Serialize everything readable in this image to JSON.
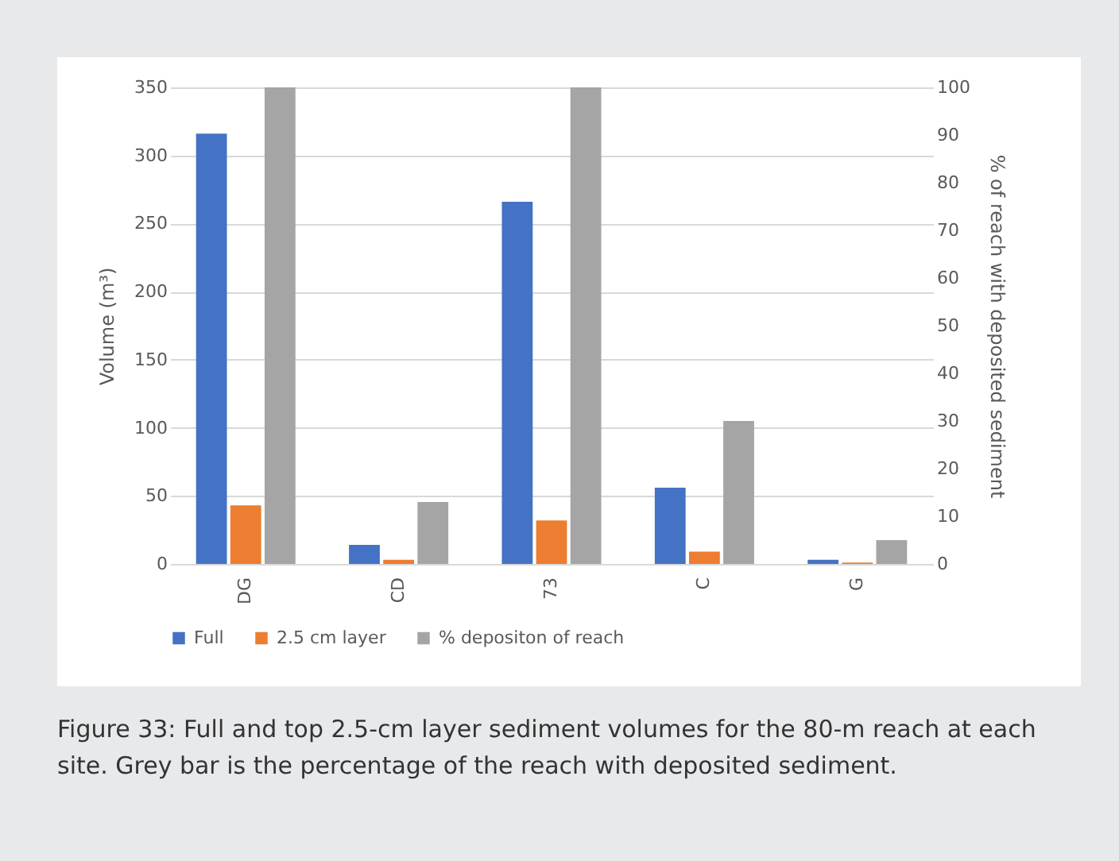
{
  "chart_data": {
    "type": "bar",
    "categories": [
      "DG",
      "CD",
      "73",
      "C",
      "G"
    ],
    "series": [
      {
        "name": "Full",
        "color": "#4472c4",
        "values": [
          316,
          14,
          266,
          56,
          3
        ]
      },
      {
        "name": "2.5 cm layer",
        "color": "#ed7d31",
        "values": [
          43,
          3,
          32,
          9,
          1
        ]
      },
      {
        "name": "% depositon of reach",
        "color": "#a5a5a5",
        "values": [
          100,
          13,
          100,
          30,
          5
        ],
        "axis": "y2"
      }
    ],
    "ylabel": "Volume (m³)",
    "y2label": "% of reach with deposited sediment",
    "ylim": [
      0,
      350
    ],
    "yticks": [
      0,
      50,
      100,
      150,
      200,
      250,
      300,
      350
    ],
    "y2lim": [
      0,
      100
    ],
    "y2ticks": [
      0,
      10,
      20,
      30,
      40,
      50,
      60,
      70,
      80,
      90,
      100
    ],
    "grid": "y",
    "legend": "bottom",
    "annotations": [
      "Figure 33: Full and top 2.5-cm layer sediment volumes for the 80-m reach at each site. Grey bar is the percentage of the reach with deposited sediment."
    ]
  }
}
